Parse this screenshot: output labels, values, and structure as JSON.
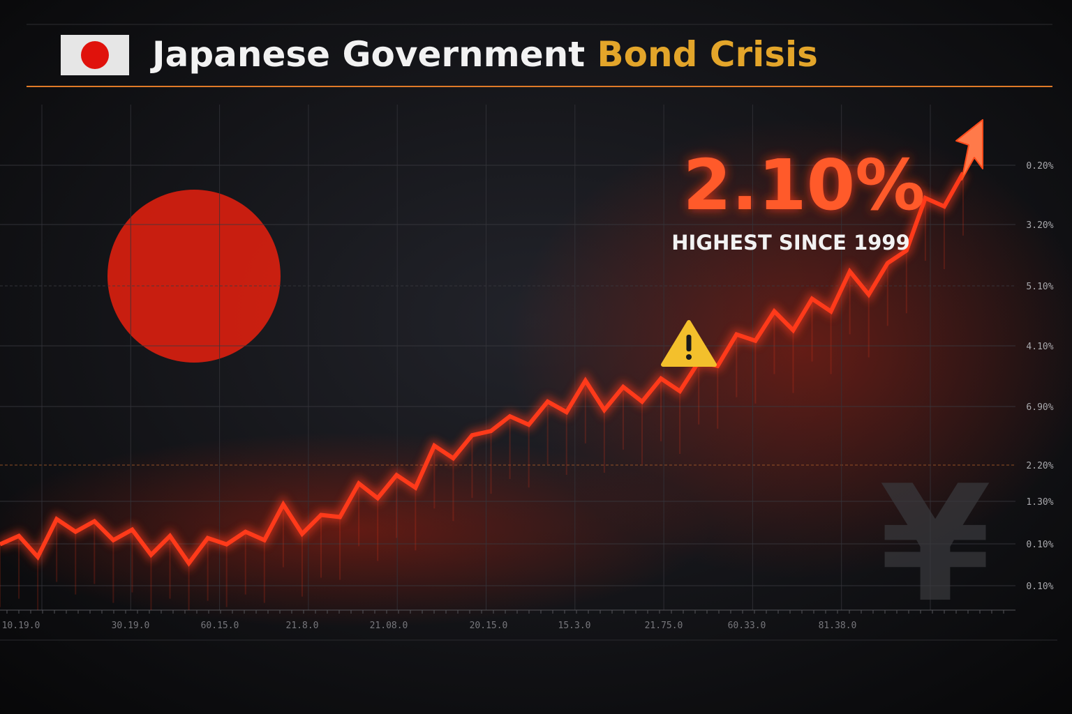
{
  "chart_data": {
    "type": "line",
    "title": "Japanese Government ",
    "title_highlight": "Bond Crisis",
    "annotation": "2.10%",
    "annotation_sub": "HIGHEST SINCE 1999",
    "y_axis_labels": [
      "0.20%",
      "3.20%",
      "5.10%",
      "4.10%",
      "6.90%",
      "2.20%",
      "1.30%",
      "0.10%",
      "0.10%"
    ],
    "x_axis_labels": [
      "10.19.0",
      "30.19.0",
      "60.15.0",
      "21.8.0",
      "21.08.0",
      "20.15.0",
      "15.3.0",
      "21.75.0",
      "60.33.0",
      "81.38.0"
    ],
    "ylim": [
      0,
      2.4
    ],
    "series": [
      {
        "color": "#ff3a1a",
        "values": [
          0.33,
          0.37,
          0.27,
          0.45,
          0.39,
          0.44,
          0.35,
          0.4,
          0.28,
          0.37,
          0.24,
          0.36,
          0.33,
          0.39,
          0.35,
          0.52,
          0.38,
          0.47,
          0.46,
          0.62,
          0.55,
          0.66,
          0.6,
          0.8,
          0.74,
          0.85,
          0.87,
          0.94,
          0.9,
          1.01,
          0.96,
          1.11,
          0.97,
          1.08,
          1.01,
          1.12,
          1.06,
          1.2,
          1.18,
          1.33,
          1.3,
          1.44,
          1.35,
          1.5,
          1.44,
          1.63,
          1.52,
          1.67,
          1.73,
          1.98,
          1.94,
          2.1
        ]
      }
    ]
  }
}
